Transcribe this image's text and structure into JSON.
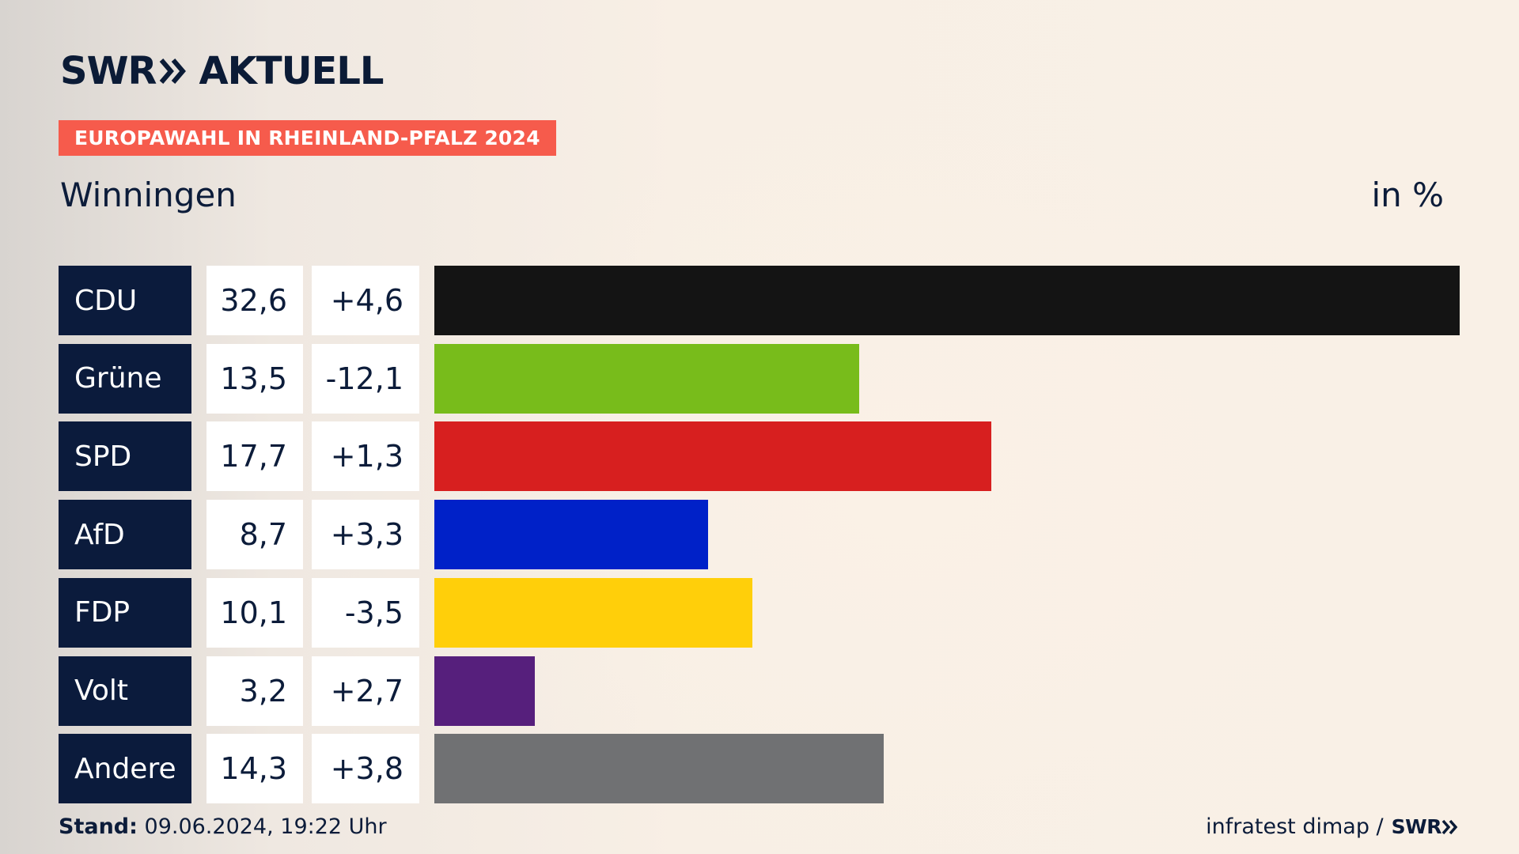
{
  "brand": {
    "logo_left": "SWR",
    "logo_right": "AKTUELL",
    "chevron_icon": "double-chevron-right-icon"
  },
  "header": {
    "kicker": "EUROPAWAHL IN RHEINLAND-PFALZ 2024",
    "place": "Winningen",
    "unit": "in %"
  },
  "chart_data": {
    "type": "bar",
    "orientation": "horizontal",
    "title": "Winningen",
    "unit": "in %",
    "categories": [
      "CDU",
      "Grüne",
      "SPD",
      "AfD",
      "FDP",
      "Volt",
      "Andere"
    ],
    "values": [
      32.6,
      13.5,
      17.7,
      8.7,
      10.1,
      3.2,
      14.3
    ],
    "value_labels": [
      "32,6",
      "13,5",
      "17,7",
      "8,7",
      "10,1",
      "3,2",
      "14,3"
    ],
    "changes": [
      4.6,
      -12.1,
      1.3,
      3.3,
      -3.5,
      2.7,
      3.8
    ],
    "change_labels": [
      "+4,6",
      "-12,1",
      "+1,3",
      "+3,3",
      "-3,5",
      "+2,7",
      "+3,8"
    ],
    "colors": [
      "#141414",
      "#78bc1b",
      "#d71f1f",
      "#0021c8",
      "#ffcf0a",
      "#561f7c",
      "#707173"
    ],
    "xlim": [
      0,
      32.6
    ],
    "grid": false
  },
  "footer": {
    "stand_label": "Stand:",
    "stand_value": "09.06.2024, 19:22 Uhr",
    "source": "infratest dimap /",
    "source_brand": "SWR"
  }
}
